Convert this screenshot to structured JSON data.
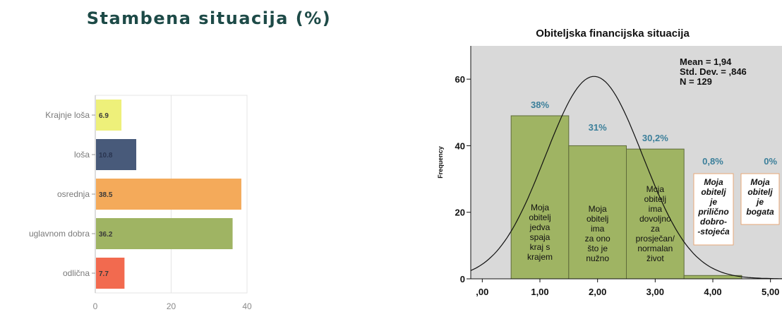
{
  "left_title": "Stambena situacija (%)",
  "chart_data": [
    {
      "type": "bar",
      "orientation": "horizontal",
      "title": "Stambena situacija (%)",
      "categories": [
        "Krajnje loša",
        "loša",
        "osrednja",
        "uglavnom dobra",
        "odlična"
      ],
      "values": [
        6.9,
        10.8,
        38.5,
        36.2,
        7.7
      ],
      "data_labels": [
        "6.9",
        "10.8",
        "38.5",
        "36.2",
        "7.7"
      ],
      "bar_colors": [
        "#eef07a",
        "#485a7a",
        "#f4aa5a",
        "#9fb463",
        "#f26a4f"
      ],
      "xlim": [
        0,
        40
      ],
      "xticks": [
        "0",
        "20",
        "40"
      ],
      "grid": true
    },
    {
      "type": "bar",
      "subtype": "histogram",
      "title": "Obiteljska financijska situacija",
      "ylabel": "Frequency",
      "x": [
        1,
        2,
        3,
        4,
        5
      ],
      "values": [
        49,
        40,
        39,
        1,
        0
      ],
      "percent_labels": [
        "38%",
        "31%",
        "30,2%",
        "0,8%",
        "0%"
      ],
      "bar_labels": [
        [
          "Moja",
          "obitelj",
          "jedva",
          "spaja",
          "kraj s",
          "krajem"
        ],
        [
          "Moja",
          "obitelj",
          "ima",
          "za ono",
          "što je",
          "nužno"
        ],
        [
          "Mcja",
          "obitelj",
          "ima",
          "dovoljno",
          "za",
          "prosječan/",
          "normalan",
          "život"
        ],
        [
          "Moja",
          "obitelj",
          "je",
          "prilično",
          "dobro-",
          "-stojeća"
        ],
        [
          "Moja",
          "obitelj",
          "je",
          "bogata"
        ]
      ],
      "xticks": [
        ",00",
        "1,00",
        "2,00",
        "3,00",
        "4,00",
        "5,00"
      ],
      "yticks": [
        "0",
        "20",
        "40",
        "60"
      ],
      "xlim": [
        -0.2,
        5.2
      ],
      "ylim": [
        0,
        70
      ],
      "normal_curve": {
        "mean": 1.94,
        "sd": 0.846,
        "n": 129
      },
      "stats": [
        "Mean = 1,94",
        "Std. Dev. = ,846",
        "N = 129"
      ],
      "bar_color": "#9fb463",
      "background_color": "#d9d9d9"
    }
  ]
}
